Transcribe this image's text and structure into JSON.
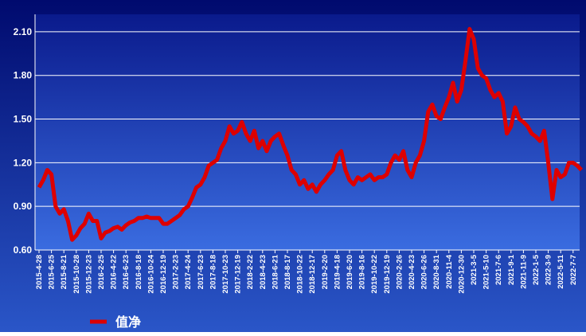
{
  "chart_data": {
    "type": "line",
    "categories": [
      "2015-4-28",
      null,
      null,
      "2015-6-25",
      null,
      null,
      "2015-8-21",
      null,
      null,
      "2015-10-28",
      null,
      null,
      "2015-12-23",
      null,
      null,
      "2016-2-25",
      null,
      null,
      "2016-4-22",
      null,
      null,
      "2016-6-23",
      null,
      null,
      "2016-8-18",
      null,
      null,
      "2016-10-24",
      null,
      null,
      "2016-12-19",
      null,
      null,
      "2017-2-23",
      null,
      null,
      "2017-4-24",
      null,
      null,
      "2017-6-23",
      null,
      null,
      "2017-8-18",
      null,
      null,
      "2017-10-23",
      null,
      null,
      "2017-12-19",
      null,
      null,
      "2018-2-22",
      null,
      null,
      "2018-4-23",
      null,
      null,
      "2018-6-21",
      null,
      null,
      "2018-8-17",
      null,
      null,
      "2018-10-22",
      null,
      null,
      "2018-12-17",
      null,
      null,
      "2019-2-20",
      null,
      null,
      "2019-4-18",
      null,
      null,
      "2019-6-20",
      null,
      null,
      "2019-8-16",
      null,
      null,
      "2019-10-22",
      null,
      null,
      "2019-12-19",
      null,
      null,
      "2020-2-26",
      null,
      null,
      "2020-4-23",
      null,
      null,
      "2020-6-26",
      null,
      null,
      "2020-8-31",
      null,
      null,
      "2020-11-4",
      null,
      null,
      "2020-12-30",
      null,
      null,
      "2021-3-5",
      null,
      null,
      "2021-5-10",
      null,
      null,
      "2021-7-6",
      null,
      null,
      "2021-9-1",
      null,
      null,
      "2021-11-9",
      null,
      null,
      "2022-1-5",
      null,
      null,
      "2022-3-9",
      null,
      null,
      "2022-5-11",
      null,
      null,
      "2022-7-7",
      null,
      null
    ],
    "series": [
      {
        "name": "值净",
        "color": "#dd0000",
        "values": [
          1.03,
          1.08,
          1.15,
          1.12,
          0.9,
          0.85,
          0.88,
          0.8,
          0.67,
          0.7,
          0.75,
          0.78,
          0.85,
          0.8,
          0.8,
          0.68,
          0.72,
          0.73,
          0.75,
          0.76,
          0.74,
          0.77,
          0.79,
          0.8,
          0.82,
          0.82,
          0.83,
          0.82,
          0.82,
          0.82,
          0.78,
          0.78,
          0.8,
          0.82,
          0.84,
          0.88,
          0.9,
          0.96,
          1.03,
          1.05,
          1.1,
          1.18,
          1.2,
          1.22,
          1.3,
          1.35,
          1.45,
          1.4,
          1.42,
          1.48,
          1.4,
          1.35,
          1.42,
          1.3,
          1.35,
          1.28,
          1.35,
          1.38,
          1.4,
          1.32,
          1.25,
          1.15,
          1.12,
          1.05,
          1.08,
          1.02,
          1.05,
          1.0,
          1.05,
          1.08,
          1.12,
          1.15,
          1.25,
          1.28,
          1.15,
          1.08,
          1.05,
          1.1,
          1.08,
          1.1,
          1.12,
          1.08,
          1.1,
          1.1,
          1.12,
          1.2,
          1.25,
          1.22,
          1.28,
          1.15,
          1.1,
          1.2,
          1.25,
          1.35,
          1.55,
          1.6,
          1.52,
          1.5,
          1.58,
          1.65,
          1.75,
          1.62,
          1.7,
          1.9,
          2.12,
          2.05,
          1.85,
          1.8,
          1.78,
          1.7,
          1.65,
          1.68,
          1.62,
          1.4,
          1.45,
          1.58,
          1.5,
          1.48,
          1.45,
          1.4,
          1.38,
          1.35,
          1.42,
          1.2,
          0.95,
          1.15,
          1.1,
          1.12,
          1.2,
          1.2,
          1.18,
          1.15
        ]
      }
    ],
    "ylim": [
      0.6,
      2.22
    ],
    "yticks": [
      {
        "value": 0.6,
        "label": "0.60"
      },
      {
        "value": 0.9,
        "label": "0.90"
      },
      {
        "value": 1.2,
        "label": "1.20"
      },
      {
        "value": 1.5,
        "label": "1.50"
      },
      {
        "value": 1.8,
        "label": "1.80"
      },
      {
        "value": 2.1,
        "label": "2.10"
      }
    ],
    "grid": true
  }
}
